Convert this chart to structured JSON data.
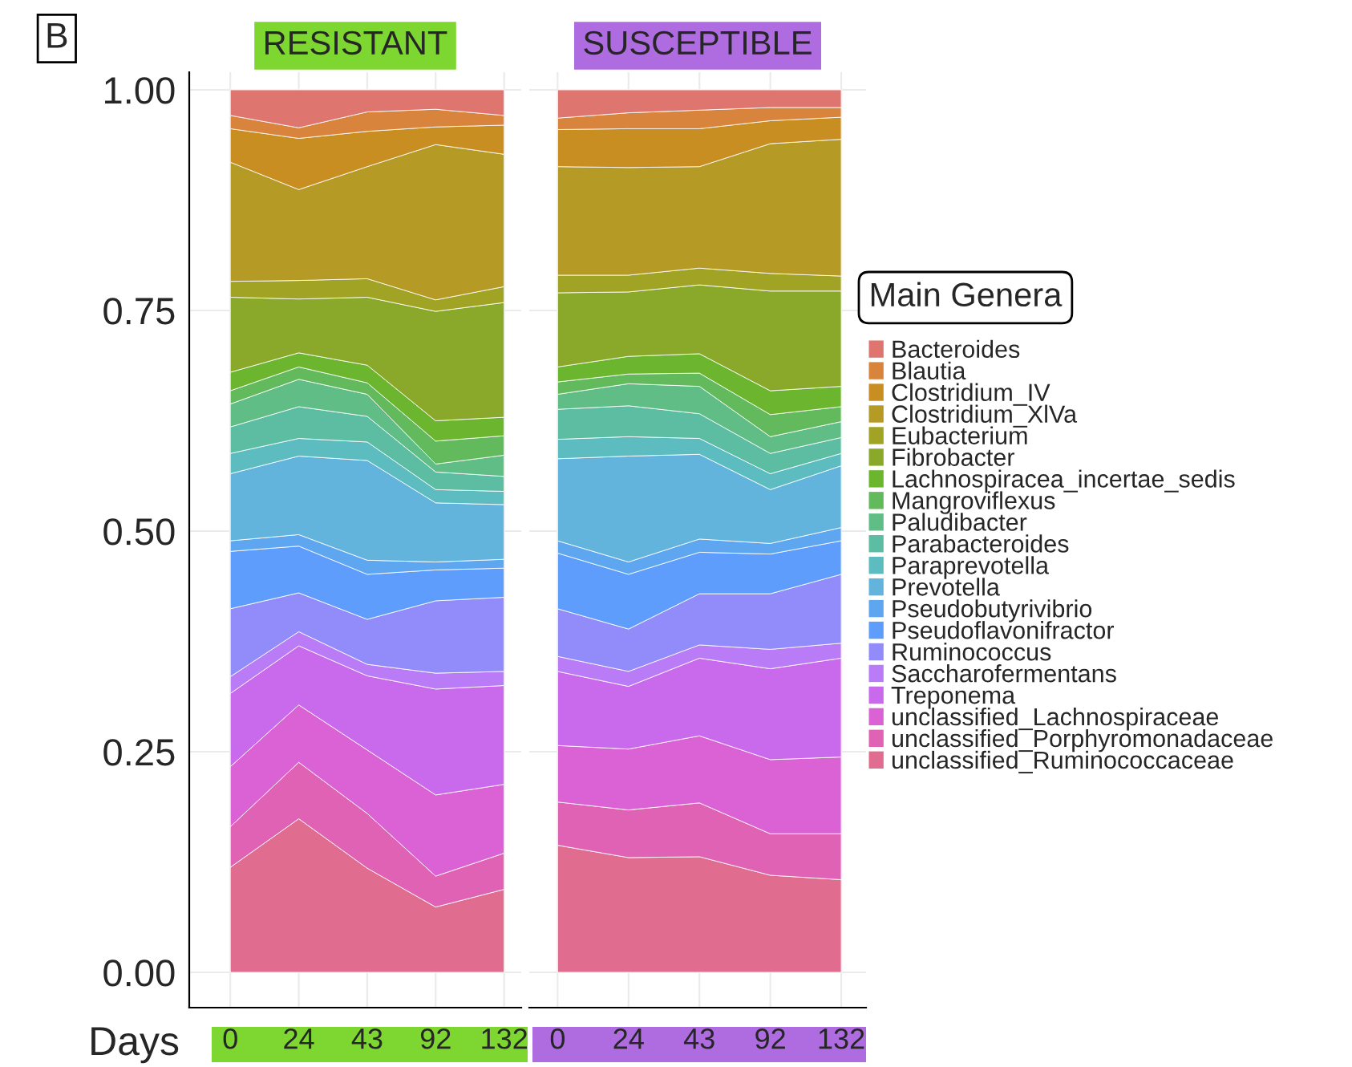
{
  "chart_data": [
    {
      "type": "area",
      "stacked": true,
      "title": "RESISTANT",
      "xlabel": "Days",
      "annotations": [
        "B"
      ],
      "categories": [
        "0",
        "24",
        "43",
        "92",
        "132"
      ],
      "ylim": [
        -0.04,
        1.02
      ],
      "yticks": [
        {
          "value": 0,
          "label": "0.00"
        },
        {
          "value": 0.25,
          "label": "0.25"
        },
        {
          "value": 0.5,
          "label": "0.50"
        },
        {
          "value": 0.75,
          "label": "0.75"
        },
        {
          "value": 1,
          "label": "1.00"
        }
      ],
      "grid": true,
      "legend": false,
      "series": [
        {
          "color": "#e06c90",
          "values": [
            0.119,
            0.174,
            0.118,
            0.074,
            0.094
          ]
        },
        {
          "color": "#e062b5",
          "values": [
            0.046,
            0.064,
            0.062,
            0.035,
            0.041
          ]
        },
        {
          "color": "#da62d4",
          "values": [
            0.068,
            0.065,
            0.072,
            0.092,
            0.078
          ]
        },
        {
          "color": "#c969ec",
          "values": [
            0.083,
            0.067,
            0.084,
            0.12,
            0.112
          ]
        },
        {
          "color": "#b97cf6",
          "values": [
            0.019,
            0.016,
            0.013,
            0.018,
            0.016
          ]
        },
        {
          "color": "#918cf9",
          "values": [
            0.077,
            0.044,
            0.051,
            0.082,
            0.084
          ]
        },
        {
          "color": "#5e9dfb",
          "values": [
            0.065,
            0.053,
            0.051,
            0.035,
            0.033
          ]
        },
        {
          "color": "#5fa6f0",
          "values": [
            0.012,
            0.013,
            0.016,
            0.009,
            0.01
          ]
        },
        {
          "color": "#62b4dc",
          "values": [
            0.076,
            0.089,
            0.113,
            0.067,
            0.062
          ]
        },
        {
          "color": "#5cbcbf",
          "values": [
            0.023,
            0.02,
            0.021,
            0.015,
            0.015
          ]
        },
        {
          "color": "#5cbda3",
          "values": [
            0.03,
            0.036,
            0.029,
            0.02,
            0.017
          ]
        },
        {
          "color": "#5fbd85",
          "values": [
            0.026,
            0.031,
            0.025,
            0.009,
            0.024
          ]
        },
        {
          "color": "#62ba5c",
          "values": [
            0.015,
            0.014,
            0.013,
            0.026,
            0.022
          ]
        },
        {
          "color": "#6cb52f",
          "values": [
            0.021,
            0.016,
            0.02,
            0.023,
            0.021
          ]
        },
        {
          "color": "#8aa92b",
          "values": [
            0.085,
            0.061,
            0.077,
            0.124,
            0.13
          ]
        },
        {
          "color": "#a1a324",
          "values": [
            0.018,
            0.021,
            0.021,
            0.013,
            0.018
          ]
        },
        {
          "color": "#b59a25",
          "values": [
            0.135,
            0.103,
            0.127,
            0.176,
            0.15
          ]
        },
        {
          "color": "#c98e22",
          "values": [
            0.038,
            0.058,
            0.04,
            0.02,
            0.033
          ]
        },
        {
          "color": "#d8843c",
          "values": [
            0.015,
            0.012,
            0.022,
            0.02,
            0.011
          ]
        },
        {
          "color": "#df756f",
          "values": [
            0.029,
            0.043,
            0.025,
            0.022,
            0.029
          ]
        }
      ]
    },
    {
      "type": "area",
      "stacked": true,
      "title": "SUSCEPTIBLE",
      "legend_title": "Main Genera",
      "categories": [
        "0",
        "24",
        "43",
        "92",
        "132"
      ],
      "ylim": [
        -0.04,
        1.02
      ],
      "yticks": [
        0,
        0.25,
        0.5,
        0.75,
        1
      ],
      "tick_labels": "x",
      "grid": true,
      "legend": "right",
      "series": [
        {
          "name": "unclassified_Ruminococcaceae",
          "color": "#e06c90",
          "values": [
            0.144,
            0.13,
            0.131,
            0.11,
            0.105
          ]
        },
        {
          "name": "unclassified_Porphyromonadaceae",
          "color": "#e062b5",
          "values": [
            0.049,
            0.054,
            0.061,
            0.047,
            0.052
          ]
        },
        {
          "name": "unclassified_Lachnospiraceae",
          "color": "#da62d4",
          "values": [
            0.064,
            0.069,
            0.076,
            0.084,
            0.087
          ]
        },
        {
          "name": "Treponema",
          "color": "#c969ec",
          "values": [
            0.084,
            0.071,
            0.088,
            0.103,
            0.112
          ]
        },
        {
          "name": "Saccharofermentans",
          "color": "#b97cf6",
          "values": [
            0.017,
            0.017,
            0.015,
            0.022,
            0.017
          ]
        },
        {
          "name": "Ruminococcus",
          "color": "#918cf9",
          "values": [
            0.054,
            0.048,
            0.058,
            0.063,
            0.078
          ]
        },
        {
          "name": "Pseudoflavonifractor",
          "color": "#5e9dfb",
          "values": [
            0.063,
            0.062,
            0.047,
            0.045,
            0.038
          ]
        },
        {
          "name": "Pseudobutyrivibrio",
          "color": "#5fa6f0",
          "values": [
            0.014,
            0.014,
            0.015,
            0.012,
            0.015
          ]
        },
        {
          "name": "Prevotella",
          "color": "#62b4dc",
          "values": [
            0.093,
            0.12,
            0.096,
            0.061,
            0.07
          ]
        },
        {
          "name": "Paraprevotella",
          "color": "#5cbcbf",
          "values": [
            0.022,
            0.022,
            0.018,
            0.018,
            0.014
          ]
        },
        {
          "name": "Parabacteroides",
          "color": "#5cbda3",
          "values": [
            0.034,
            0.035,
            0.028,
            0.023,
            0.018
          ]
        },
        {
          "name": "Paludibacter",
          "color": "#5fbd85",
          "values": [
            0.017,
            0.025,
            0.031,
            0.019,
            0.018
          ]
        },
        {
          "name": "Mangroviflexus",
          "color": "#62ba5c",
          "values": [
            0.014,
            0.011,
            0.015,
            0.025,
            0.017
          ]
        },
        {
          "name": "Lachnospiracea_incertae_sedis",
          "color": "#6cb52f",
          "values": [
            0.017,
            0.02,
            0.022,
            0.027,
            0.023
          ]
        },
        {
          "name": "Fibrobacter",
          "color": "#8aa92b",
          "values": [
            0.084,
            0.073,
            0.078,
            0.113,
            0.108
          ]
        },
        {
          "name": "Eubacterium",
          "color": "#a1a324",
          "values": [
            0.02,
            0.019,
            0.019,
            0.02,
            0.017
          ]
        },
        {
          "name": "Clostridium_XlVa",
          "color": "#b59a25",
          "values": [
            0.123,
            0.122,
            0.115,
            0.147,
            0.155
          ]
        },
        {
          "name": "Clostridium_IV",
          "color": "#c98e22",
          "values": [
            0.042,
            0.044,
            0.043,
            0.026,
            0.025
          ]
        },
        {
          "name": "Blautia",
          "color": "#d8843c",
          "values": [
            0.013,
            0.018,
            0.021,
            0.015,
            0.011
          ]
        },
        {
          "name": "Bacteroides",
          "color": "#df756f",
          "values": [
            0.032,
            0.026,
            0.023,
            0.02,
            0.02
          ]
        }
      ]
    }
  ]
}
